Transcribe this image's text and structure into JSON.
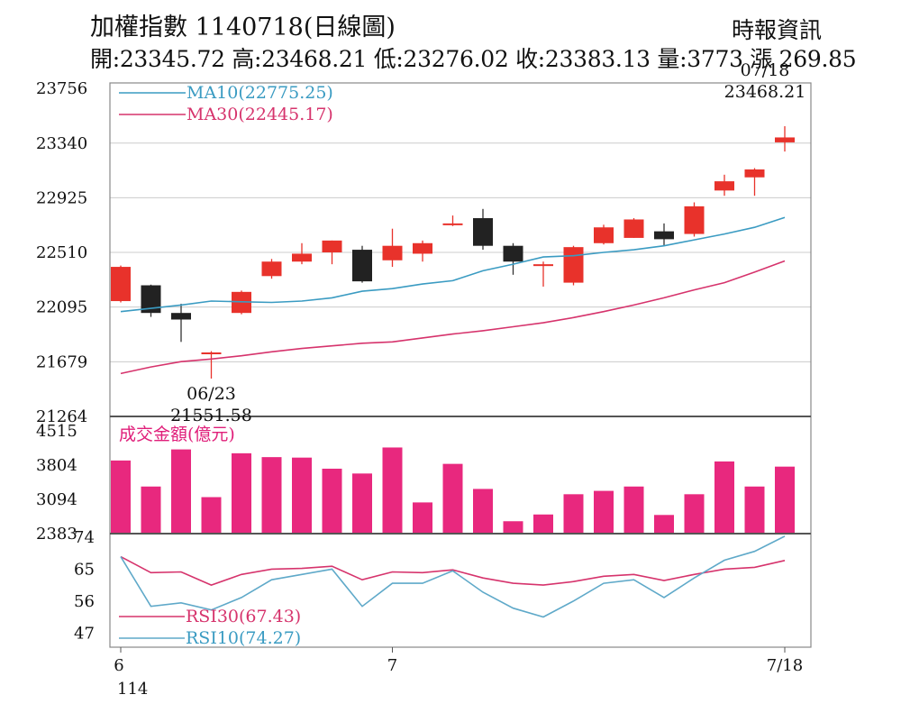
{
  "header": {
    "title": "加權指數 1140718(日線圖)",
    "source": "時報資訊",
    "ohlc": "開:23345.72 高:23468.21 低:23276.02 收:23383.13 量:3773 漲 269.85"
  },
  "colors": {
    "up": "#e8322b",
    "down": "#222222",
    "ma10": "#3a9bc2",
    "ma30": "#d6336c",
    "volume": "#e8287e",
    "rsi30": "#d6336c",
    "rsi10": "#5fa9c9",
    "grid": "#cccccc"
  },
  "chart_data": [
    {
      "type": "candlestick",
      "yticks": [
        21264,
        21679,
        22095,
        22510,
        22925,
        23340,
        23756
      ],
      "ylim": [
        21264,
        23756
      ],
      "grid": true,
      "legend": [
        {
          "key": "ma10",
          "label": "MA10(22775.25)"
        },
        {
          "key": "ma30",
          "label": "MA30(22445.17)"
        }
      ],
      "annotations": [
        {
          "index": 3,
          "position": "below",
          "lines": [
            "06/23",
            "21551.58"
          ]
        },
        {
          "index": 22,
          "position": "above",
          "lines": [
            "07/18",
            "23468.21"
          ]
        }
      ],
      "candles": [
        {
          "open": 22140,
          "high": 22410,
          "low": 22130,
          "close": 22400
        },
        {
          "open": 22260,
          "high": 22265,
          "low": 22020,
          "close": 22050
        },
        {
          "open": 22050,
          "high": 22120,
          "low": 21830,
          "close": 22000
        },
        {
          "open": 21740,
          "high": 21760,
          "low": 21551.58,
          "close": 21750
        },
        {
          "open": 22050,
          "high": 22220,
          "low": 22040,
          "close": 22210
        },
        {
          "open": 22330,
          "high": 22460,
          "low": 22310,
          "close": 22440
        },
        {
          "open": 22440,
          "high": 22580,
          "low": 22420,
          "close": 22500
        },
        {
          "open": 22510,
          "high": 22600,
          "low": 22420,
          "close": 22600
        },
        {
          "open": 22530,
          "high": 22560,
          "low": 22280,
          "close": 22290
        },
        {
          "open": 22450,
          "high": 22690,
          "low": 22400,
          "close": 22560
        },
        {
          "open": 22500,
          "high": 22600,
          "low": 22440,
          "close": 22580
        },
        {
          "open": 22720,
          "high": 22790,
          "low": 22710,
          "close": 22730
        },
        {
          "open": 22770,
          "high": 22840,
          "low": 22530,
          "close": 22560
        },
        {
          "open": 22560,
          "high": 22580,
          "low": 22340,
          "close": 22440
        },
        {
          "open": 22420,
          "high": 22440,
          "low": 22250,
          "close": 22420
        },
        {
          "open": 22280,
          "high": 22560,
          "low": 22260,
          "close": 22550
        },
        {
          "open": 22580,
          "high": 22720,
          "low": 22570,
          "close": 22700
        },
        {
          "open": 22620,
          "high": 22770,
          "low": 22620,
          "close": 22760
        },
        {
          "open": 22670,
          "high": 22730,
          "low": 22560,
          "close": 22610
        },
        {
          "open": 22650,
          "high": 22890,
          "low": 22630,
          "close": 22860
        },
        {
          "open": 22980,
          "high": 23100,
          "low": 22940,
          "close": 23050
        },
        {
          "open": 23080,
          "high": 23150,
          "low": 22940,
          "close": 23140
        },
        {
          "open": 23345.72,
          "high": 23468.21,
          "low": 23276.02,
          "close": 23383.13
        }
      ],
      "ma10": [
        22060,
        22085,
        22110,
        22140,
        22135,
        22130,
        22140,
        22165,
        22215,
        22235,
        22270,
        22295,
        22370,
        22420,
        22475,
        22485,
        22510,
        22530,
        22560,
        22605,
        22650,
        22700,
        22775.25
      ],
      "ma30": [
        21590,
        21640,
        21680,
        21700,
        21725,
        21755,
        21780,
        21800,
        21820,
        21830,
        21860,
        21890,
        21915,
        21945,
        21975,
        22015,
        22060,
        22110,
        22165,
        22225,
        22280,
        22360,
        22445.17
      ]
    },
    {
      "type": "bar",
      "label": "成交金額(億元)",
      "yticks": [
        2383,
        3094,
        3804,
        4515
      ],
      "ylim": [
        2383,
        4515
      ],
      "values": [
        3900,
        3360,
        4130,
        3140,
        4050,
        3970,
        3960,
        3730,
        3630,
        4170,
        3030,
        3830,
        3310,
        2640,
        2780,
        3200,
        3270,
        3360,
        2770,
        3200,
        3880,
        3360,
        3773
      ]
    },
    {
      "type": "line",
      "yticks": [
        47,
        56,
        65,
        74
      ],
      "ylim": [
        43,
        75
      ],
      "legend": [
        {
          "key": "rsi30",
          "label": "RSI30(67.43)"
        },
        {
          "key": "rsi10",
          "label": "RSI10(74.27)"
        }
      ],
      "series": [
        {
          "key": "rsi30",
          "values": [
            68.5,
            64.0,
            64.2,
            60.5,
            63.5,
            65.0,
            65.2,
            65.8,
            62.0,
            64.2,
            64.0,
            64.8,
            62.5,
            61.0,
            60.5,
            61.5,
            63.0,
            63.5,
            61.8,
            63.5,
            65.0,
            65.5,
            67.43
          ]
        },
        {
          "key": "rsi10",
          "values": [
            68.5,
            54.5,
            55.5,
            53.5,
            57.0,
            62.0,
            63.5,
            65.0,
            54.5,
            61.0,
            61.0,
            64.5,
            58.5,
            54.0,
            51.5,
            56.0,
            61.0,
            62.0,
            57.0,
            62.5,
            67.5,
            70.0,
            74.27
          ]
        }
      ]
    }
  ],
  "x_axis": {
    "labels": [
      {
        "index": 0,
        "text": "6"
      },
      {
        "index": 9,
        "text": "7"
      },
      {
        "index": 22,
        "text": "7/18"
      }
    ],
    "sub_label": "114"
  }
}
